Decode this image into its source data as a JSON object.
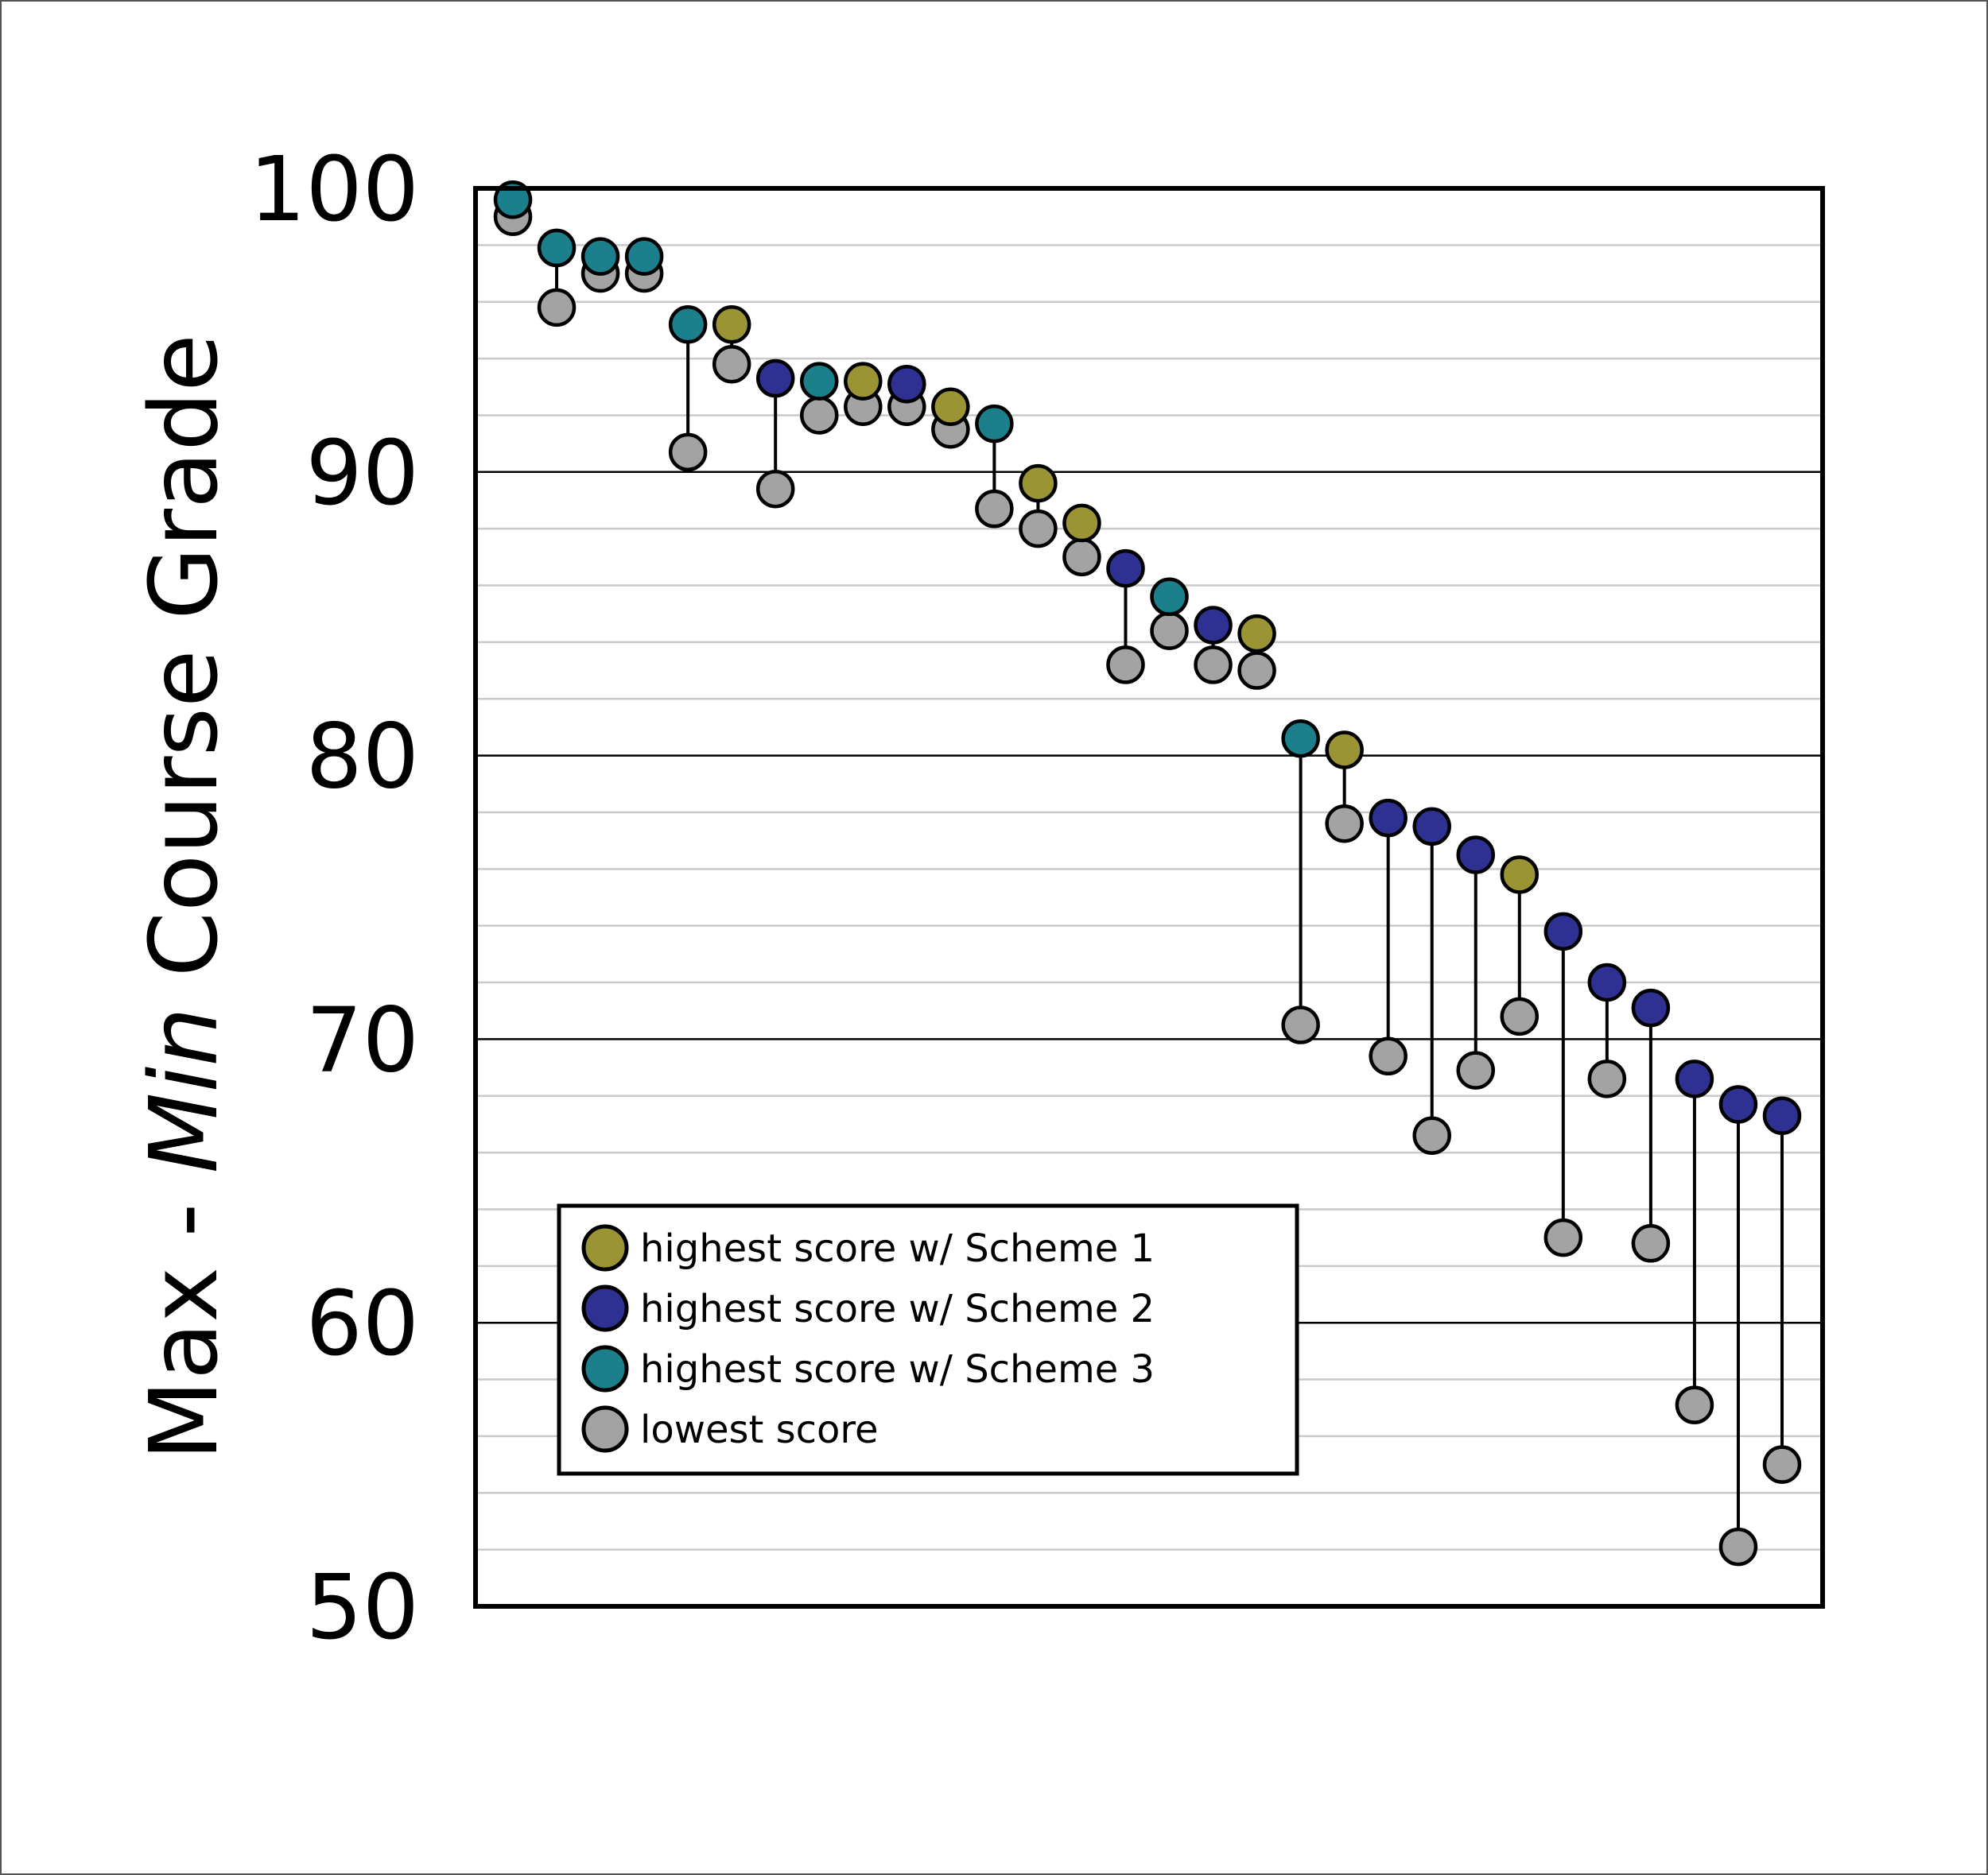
{
  "chart_data": {
    "type": "scatter",
    "ylabel_parts": [
      "Max - ",
      "Min",
      " Course Grade"
    ],
    "ylim": [
      50,
      100
    ],
    "yticks": [
      100,
      90,
      80,
      70,
      60,
      50
    ],
    "major_grid": [
      90,
      80,
      70,
      60
    ],
    "minor_grid_step": 2,
    "legend_position": "bottom-left",
    "colors": {
      "scheme1": "#9a9434",
      "scheme2": "#2e3192",
      "scheme3": "#1b7f8c",
      "lowest": "#a3a3a3"
    },
    "legend": [
      {
        "key": "scheme1",
        "label": "highest score w/ Scheme 1"
      },
      {
        "key": "scheme2",
        "label": "highest score w/ Scheme 2"
      },
      {
        "key": "scheme3",
        "label": "highest score w/ Scheme 3"
      },
      {
        "key": "lowest",
        "label": "lowest score"
      }
    ],
    "points": [
      {
        "high": 99.6,
        "low": 99.0,
        "scheme": 3
      },
      {
        "high": 97.9,
        "low": 95.8,
        "scheme": 3
      },
      {
        "high": 97.6,
        "low": 97.0,
        "scheme": 3
      },
      {
        "high": 97.6,
        "low": 97.0,
        "scheme": 3
      },
      {
        "high": 95.2,
        "low": 90.7,
        "scheme": 3
      },
      {
        "high": 95.2,
        "low": 93.8,
        "scheme": 1
      },
      {
        "high": 93.3,
        "low": 89.4,
        "scheme": 2
      },
      {
        "high": 93.2,
        "low": 92.0,
        "scheme": 3
      },
      {
        "high": 93.2,
        "low": 92.3,
        "scheme": 1
      },
      {
        "high": 93.1,
        "low": 92.3,
        "scheme": 2
      },
      {
        "high": 92.3,
        "low": 91.5,
        "scheme": 1
      },
      {
        "high": 91.7,
        "low": 88.7,
        "scheme": 3
      },
      {
        "high": 89.6,
        "low": 88.0,
        "scheme": 1
      },
      {
        "high": 88.2,
        "low": 87.0,
        "scheme": 1
      },
      {
        "high": 86.6,
        "low": 83.2,
        "scheme": 2
      },
      {
        "high": 85.6,
        "low": 84.4,
        "scheme": 3
      },
      {
        "high": 84.6,
        "low": 83.2,
        "scheme": 2
      },
      {
        "high": 84.3,
        "low": 83.0,
        "scheme": 1
      },
      {
        "high": 80.6,
        "low": 70.5,
        "scheme": 3
      },
      {
        "high": 80.2,
        "low": 77.6,
        "scheme": 1
      },
      {
        "high": 77.8,
        "low": 69.4,
        "scheme": 2
      },
      {
        "high": 77.5,
        "low": 66.6,
        "scheme": 2
      },
      {
        "high": 76.5,
        "low": 68.9,
        "scheme": 2
      },
      {
        "high": 75.8,
        "low": 70.8,
        "scheme": 1
      },
      {
        "high": 73.8,
        "low": 63.0,
        "scheme": 2
      },
      {
        "high": 72.0,
        "low": 68.6,
        "scheme": 2
      },
      {
        "high": 71.1,
        "low": 62.8,
        "scheme": 2
      },
      {
        "high": 68.6,
        "low": 57.1,
        "scheme": 2
      },
      {
        "high": 67.7,
        "low": 52.1,
        "scheme": 2
      },
      {
        "high": 67.3,
        "low": 55.0,
        "scheme": 2
      }
    ]
  }
}
